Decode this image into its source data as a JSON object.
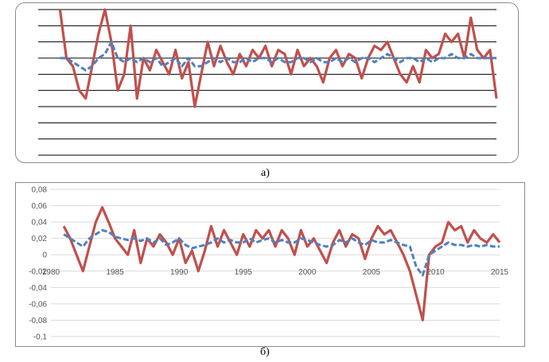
{
  "captions": {
    "a": "а)",
    "b": "б)"
  },
  "colors": {
    "actual": "#c0504d",
    "model": "#4f81bd",
    "grid": "#000000",
    "grid_b": "#d9d9d9"
  },
  "chart_data": [
    {
      "id": "a",
      "type": "line",
      "title": "",
      "grid": true,
      "axes_labels_visible": false,
      "ylim": [
        -0.1,
        0.08
      ],
      "series": [
        {
          "style": "solid",
          "x": [
            1981.0,
            1981.5,
            1982.0,
            1982.5,
            1983.0,
            1983.5,
            1984.0,
            1984.5,
            1985.0,
            1985.5,
            1986.0,
            1986.5,
            1987.0,
            1987.5,
            1988.0,
            1988.5,
            1989.0,
            1989.5,
            1990.0,
            1990.5,
            1991.0,
            1991.5,
            1992.0,
            1992.5,
            1993.0,
            1993.5,
            1994.0,
            1994.5,
            1995.0,
            1995.5,
            1996.0,
            1996.5,
            1997.0,
            1997.5,
            1998.0,
            1998.5,
            1999.0,
            1999.5,
            2000.0,
            2000.5,
            2001.0,
            2001.5,
            2002.0,
            2002.5,
            2003.0,
            2003.5,
            2004.0,
            2004.5,
            2005.0,
            2005.5,
            2006.0,
            2006.5,
            2007.0,
            2007.5,
            2008.0,
            2008.5,
            2009.0,
            2009.5,
            2010.0,
            2010.5,
            2011.0,
            2011.5,
            2012.0,
            2012.5,
            2013.0,
            2013.5,
            2014.0,
            2014.5,
            2015.0
          ],
          "y": [
            0.08,
            0.02,
            0.01,
            -0.02,
            -0.03,
            0.01,
            0.05,
            0.08,
            0.04,
            -0.02,
            0.0,
            0.06,
            -0.03,
            0.02,
            0.005,
            0.03,
            0.015,
            0.0,
            0.03,
            -0.005,
            0.015,
            -0.04,
            0.0,
            0.04,
            0.01,
            0.035,
            0.015,
            0.0,
            0.025,
            0.01,
            0.03,
            0.02,
            0.035,
            0.01,
            0.03,
            0.025,
            0.0,
            0.03,
            0.01,
            0.02,
            0.01,
            -0.01,
            0.02,
            0.03,
            0.01,
            0.025,
            0.02,
            -0.005,
            0.02,
            0.035,
            0.03,
            0.04,
            0.02,
            0.0,
            -0.01,
            0.01,
            -0.01,
            0.03,
            0.02,
            0.025,
            0.05,
            0.04,
            0.05,
            0.02,
            0.07,
            0.03,
            0.02,
            0.03,
            -0.03
          ]
        },
        {
          "style": "dashed",
          "x": [
            1981.0,
            1981.5,
            1982.0,
            1982.5,
            1983.0,
            1983.5,
            1984.0,
            1984.5,
            1985.0,
            1985.5,
            1986.0,
            1986.5,
            1987.0,
            1987.5,
            1988.0,
            1988.5,
            1989.0,
            1989.5,
            1990.0,
            1990.5,
            1991.0,
            1991.5,
            1992.0,
            1992.5,
            1993.0,
            1993.5,
            1994.0,
            1994.5,
            1995.0,
            1995.5,
            1996.0,
            1996.5,
            1997.0,
            1997.5,
            1998.0,
            1998.5,
            1999.0,
            1999.5,
            2000.0,
            2000.5,
            2001.0,
            2001.5,
            2002.0,
            2002.5,
            2003.0,
            2003.5,
            2004.0,
            2004.5,
            2005.0,
            2005.5,
            2006.0,
            2006.5,
            2007.0,
            2007.5,
            2008.0,
            2008.5,
            2009.0,
            2009.5,
            2010.0,
            2010.5,
            2011.0,
            2011.5,
            2012.0,
            2012.5,
            2013.0,
            2013.5,
            2014.0,
            2014.5,
            2015.0
          ],
          "y": [
            0.02,
            0.02,
            0.015,
            0.01,
            0.005,
            0.01,
            0.02,
            0.025,
            0.04,
            0.02,
            0.015,
            0.02,
            0.015,
            0.02,
            0.015,
            0.02,
            0.01,
            0.015,
            0.02,
            0.01,
            0.02,
            0.01,
            0.01,
            0.015,
            0.02,
            0.015,
            0.02,
            0.015,
            0.015,
            0.02,
            0.015,
            0.02,
            0.02,
            0.015,
            0.02,
            0.015,
            0.015,
            0.02,
            0.02,
            0.015,
            0.02,
            0.015,
            0.015,
            0.02,
            0.015,
            0.02,
            0.015,
            0.02,
            0.02,
            0.015,
            0.02,
            0.025,
            0.02,
            0.015,
            0.02,
            0.02,
            0.015,
            0.02,
            0.015,
            0.02,
            0.02,
            0.025,
            0.02,
            0.02,
            0.025,
            0.02,
            0.02,
            0.02,
            0.02
          ]
        }
      ]
    },
    {
      "id": "b",
      "type": "line",
      "title": "",
      "grid": true,
      "xlim": [
        1980,
        2015
      ],
      "ylim": [
        -0.1,
        0.08
      ],
      "x_ticks": [
        "1980",
        "1985",
        "1990",
        "1995",
        "2000",
        "2005",
        "2010",
        "2015"
      ],
      "y_ticks": [
        "0,08",
        "0,06",
        "0,04",
        "0,02",
        "0",
        "-0,02",
        "-0,04",
        "-0,06",
        "-0,08",
        "-0,1"
      ],
      "series": [
        {
          "style": "solid",
          "x": [
            1981.0,
            1981.5,
            1982.0,
            1982.5,
            1983.0,
            1983.5,
            1984.0,
            1984.5,
            1985.0,
            1985.5,
            1986.0,
            1986.5,
            1987.0,
            1987.5,
            1988.0,
            1988.5,
            1989.0,
            1989.5,
            1990.0,
            1990.5,
            1991.0,
            1991.5,
            1992.0,
            1992.5,
            1993.0,
            1993.5,
            1994.0,
            1994.5,
            1995.0,
            1995.5,
            1996.0,
            1996.5,
            1997.0,
            1997.5,
            1998.0,
            1998.5,
            1999.0,
            1999.5,
            2000.0,
            2000.5,
            2001.0,
            2001.5,
            2002.0,
            2002.5,
            2003.0,
            2003.5,
            2004.0,
            2004.5,
            2005.0,
            2005.5,
            2006.0,
            2006.5,
            2007.0,
            2007.5,
            2008.0,
            2008.5,
            2009.0,
            2009.5,
            2010.0,
            2010.5,
            2011.0,
            2011.5,
            2012.0,
            2012.5,
            2013.0,
            2013.5,
            2014.0,
            2014.5,
            2015.0
          ],
          "y": [
            0.035,
            0.02,
            0.0,
            -0.02,
            0.01,
            0.04,
            0.058,
            0.04,
            0.02,
            0.01,
            0.0,
            0.03,
            -0.01,
            0.02,
            0.01,
            0.025,
            0.015,
            0.0,
            0.02,
            -0.01,
            0.005,
            -0.02,
            0.005,
            0.035,
            0.01,
            0.03,
            0.015,
            0.0,
            0.025,
            0.01,
            0.03,
            0.02,
            0.03,
            0.01,
            0.03,
            0.02,
            0.0,
            0.03,
            0.01,
            0.02,
            0.005,
            -0.01,
            0.015,
            0.03,
            0.01,
            0.025,
            0.02,
            -0.005,
            0.02,
            0.035,
            0.025,
            0.03,
            0.015,
            0.0,
            -0.02,
            -0.05,
            -0.08,
            0.0,
            0.01,
            0.015,
            0.04,
            0.03,
            0.035,
            0.015,
            0.03,
            0.02,
            0.015,
            0.025,
            0.015
          ]
        },
        {
          "style": "dashed",
          "x": [
            1981.0,
            1981.5,
            1982.0,
            1982.5,
            1983.0,
            1983.5,
            1984.0,
            1984.5,
            1985.0,
            1985.5,
            1986.0,
            1986.5,
            1987.0,
            1987.5,
            1988.0,
            1988.5,
            1989.0,
            1989.5,
            1990.0,
            1990.5,
            1991.0,
            1991.5,
            1992.0,
            1992.5,
            1993.0,
            1993.5,
            1994.0,
            1994.5,
            1995.0,
            1995.5,
            1996.0,
            1996.5,
            1997.0,
            1997.5,
            1998.0,
            1998.5,
            1999.0,
            1999.5,
            2000.0,
            2000.5,
            2001.0,
            2001.5,
            2002.0,
            2002.5,
            2003.0,
            2003.5,
            2004.0,
            2004.5,
            2005.0,
            2005.5,
            2006.0,
            2006.5,
            2007.0,
            2007.5,
            2008.0,
            2008.5,
            2009.0,
            2009.5,
            2010.0,
            2010.5,
            2011.0,
            2011.5,
            2012.0,
            2012.5,
            2013.0,
            2013.5,
            2014.0,
            2014.5,
            2015.0
          ],
          "y": [
            0.025,
            0.02,
            0.015,
            0.01,
            0.02,
            0.025,
            0.03,
            0.028,
            0.022,
            0.02,
            0.018,
            0.02,
            0.017,
            0.02,
            0.015,
            0.02,
            0.012,
            0.015,
            0.02,
            0.012,
            0.008,
            0.01,
            0.012,
            0.015,
            0.02,
            0.015,
            0.018,
            0.015,
            0.015,
            0.02,
            0.015,
            0.018,
            0.02,
            0.015,
            0.018,
            0.015,
            0.015,
            0.02,
            0.018,
            0.015,
            0.012,
            0.01,
            0.012,
            0.018,
            0.015,
            0.02,
            0.015,
            0.012,
            0.018,
            0.015,
            0.015,
            0.018,
            0.015,
            0.012,
            0.01,
            -0.015,
            -0.025,
            0.0,
            0.005,
            0.01,
            0.015,
            0.012,
            0.012,
            0.01,
            0.012,
            0.01,
            0.012,
            0.01,
            0.01
          ]
        }
      ]
    }
  ]
}
